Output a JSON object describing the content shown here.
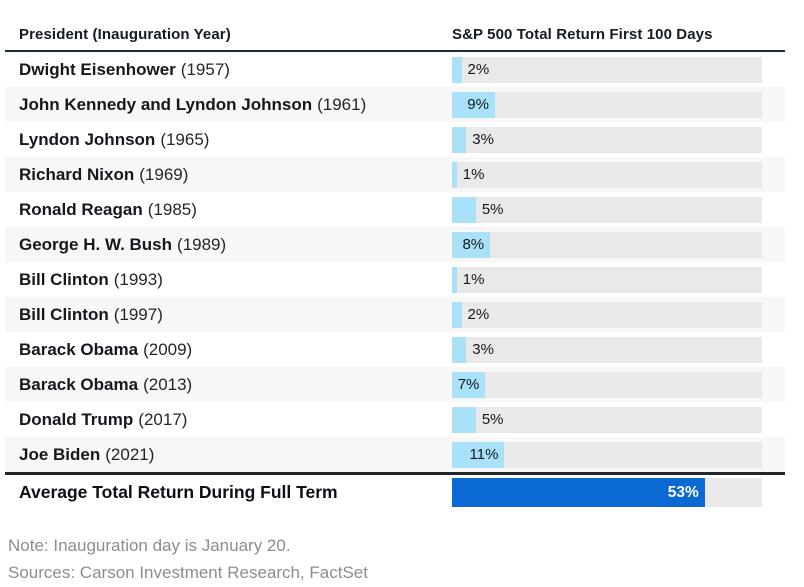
{
  "header": {
    "col1": "President (Inauguration Year)",
    "col2": "S&P 500 Total Return First 100 Days"
  },
  "rows": [
    {
      "president": "Dwight Eisenhower",
      "year": "(1957)",
      "value": 2,
      "label": "2%"
    },
    {
      "president": "John Kennedy and Lyndon Johnson",
      "year": "(1961)",
      "value": 9,
      "label": "9%"
    },
    {
      "president": "Lyndon Johnson",
      "year": "(1965)",
      "value": 3,
      "label": "3%"
    },
    {
      "president": "Richard Nixon",
      "year": "(1969)",
      "value": 1,
      "label": "1%"
    },
    {
      "president": "Ronald Reagan",
      "year": "(1985)",
      "value": 5,
      "label": "5%"
    },
    {
      "president": "George H. W. Bush",
      "year": "(1989)",
      "value": 8,
      "label": "8%"
    },
    {
      "president": "Bill Clinton",
      "year": "(1993)",
      "value": 1,
      "label": "1%"
    },
    {
      "president": "Bill Clinton",
      "year": "(1997)",
      "value": 2,
      "label": "2%"
    },
    {
      "president": "Barack Obama",
      "year": "(2009)",
      "value": 3,
      "label": "3%"
    },
    {
      "president": "Barack Obama",
      "year": "(2013)",
      "value": 7,
      "label": "7%"
    },
    {
      "president": "Donald Trump",
      "year": "(2017)",
      "value": 5,
      "label": "5%"
    },
    {
      "president": "Joe Biden",
      "year": "(2021)",
      "value": 11,
      "label": "11%"
    }
  ],
  "average": {
    "label": "Average Total Return During Full Term",
    "value": 53,
    "value_label": "53%"
  },
  "notes": {
    "line1": "Note: Inauguration day is January 20.",
    "line2": "Sources: Carson Investment Research, FactSet"
  },
  "colors": {
    "bar_light": "#a9e2f8",
    "bar_dark": "#0b69d4",
    "header_rule": "#1b2a41",
    "divider": "#23262b",
    "alt_row": "#f7f7f7",
    "track": "#e9e9e9",
    "value_label": "#14171c",
    "note": "#8d8d8d",
    "text": "#15181d"
  },
  "chart_data": {
    "type": "bar",
    "orientation": "horizontal",
    "title": "S&P 500 Total Return First 100 Days",
    "xlabel": "",
    "ylabel": "President (Inauguration Year)",
    "categories": [
      "Dwight Eisenhower (1957)",
      "John Kennedy and Lyndon Johnson (1961)",
      "Lyndon Johnson (1965)",
      "Richard Nixon (1969)",
      "Ronald Reagan (1985)",
      "George H. W. Bush (1989)",
      "Bill Clinton (1993)",
      "Bill Clinton (1997)",
      "Barack Obama (2009)",
      "Barack Obama (2013)",
      "Donald Trump (2017)",
      "Joe Biden (2021)"
    ],
    "values": [
      2,
      9,
      3,
      1,
      5,
      8,
      1,
      2,
      3,
      7,
      5,
      11
    ],
    "summary_row": {
      "label": "Average Total Return During Full Term",
      "value": 53
    },
    "xlim": [
      0,
      65
    ],
    "grid": false,
    "legend": false,
    "annotations": [
      "Note: Inauguration day is January 20.",
      "Sources: Carson Investment Research, FactSet"
    ]
  }
}
